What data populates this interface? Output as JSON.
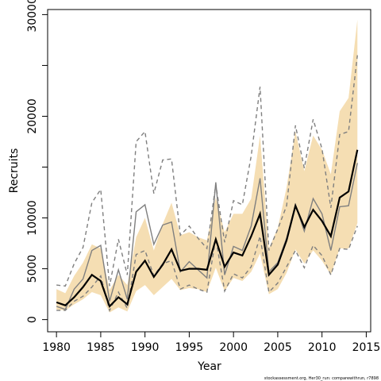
{
  "chart_data": {
    "type": "line",
    "xlabel": "Year",
    "ylabel": "Recruits",
    "xlim": [
      1979,
      2015.5
    ],
    "ylim": [
      -1200,
      30500
    ],
    "x_ticks": [
      1980,
      1985,
      1990,
      1995,
      2000,
      2005,
      2010,
      2015
    ],
    "y_ticks": [
      0,
      5000,
      10000,
      20000,
      30000
    ],
    "y_minor_ticks": [
      15000,
      25000
    ],
    "grid": false,
    "footer": "stockassessment.org, Her30_run: comparewithrun, r7898",
    "colors": {
      "band": "#F5DEB3",
      "estimate": "#000000",
      "compare": "#7F7F7F"
    },
    "x": [
      1980,
      1981,
      1982,
      1983,
      1984,
      1985,
      1986,
      1987,
      1988,
      1989,
      1990,
      1991,
      1992,
      1993,
      1994,
      1995,
      1996,
      1997,
      1998,
      1999,
      2000,
      2001,
      2002,
      2003,
      2004,
      2005,
      2006,
      2007,
      2008,
      2009,
      2010,
      2011,
      2012,
      2013,
      2014
    ],
    "series": [
      {
        "style": "band",
        "lower": [
          1000,
          900,
          1500,
          2000,
          2700,
          2400,
          700,
          1200,
          800,
          2800,
          3400,
          2400,
          3200,
          4000,
          2900,
          3100,
          3000,
          2700,
          5100,
          2800,
          4100,
          3800,
          4700,
          6500,
          2500,
          3000,
          4600,
          6900,
          5500,
          6800,
          5800,
          4400,
          7000,
          7000,
          9500
        ],
        "upper": [
          3000,
          2600,
          4300,
          5600,
          7400,
          7000,
          2900,
          4400,
          3400,
          8100,
          10000,
          6800,
          9400,
          11500,
          8300,
          8600,
          8100,
          7800,
          12000,
          8600,
          10400,
          10400,
          11900,
          18100,
          7000,
          9000,
          13000,
          18500,
          14600,
          18100,
          16700,
          14300,
          20500,
          21800,
          29500
        ]
      },
      {
        "style": "solid-black",
        "values": [
          1700,
          1400,
          2200,
          3200,
          4400,
          3800,
          1300,
          2200,
          1500,
          4700,
          5800,
          4200,
          5400,
          6900,
          4800,
          5000,
          5000,
          4900,
          7900,
          5200,
          6600,
          6300,
          8200,
          10400,
          4400,
          5400,
          7800,
          11200,
          9100,
          10800,
          9700,
          8200,
          12000,
          12600,
          16700
        ]
      },
      {
        "style": "solid-gray",
        "values": [
          1300,
          1000,
          3000,
          4000,
          6800,
          7300,
          1800,
          4900,
          2000,
          10600,
          11300,
          7400,
          9300,
          9600,
          4700,
          5700,
          4900,
          4100,
          13500,
          4400,
          7200,
          6800,
          9200,
          13900,
          4700,
          5600,
          8000,
          11300,
          8700,
          11900,
          10400,
          6800,
          11100,
          11200,
          15400
        ]
      },
      {
        "style": "dashed-upper",
        "values": [
          3400,
          3300,
          5500,
          7100,
          11500,
          12800,
          3300,
          7900,
          4400,
          17500,
          18500,
          12400,
          15700,
          15800,
          8300,
          9200,
          8000,
          7000,
          13300,
          7600,
          11700,
          11300,
          16100,
          22900,
          6800,
          8900,
          11200,
          19100,
          14900,
          19700,
          16800,
          11000,
          18200,
          18500,
          26000
        ]
      },
      {
        "style": "dashed-lower",
        "values": [
          900,
          900,
          1800,
          2300,
          3200,
          4300,
          900,
          2700,
          1100,
          6400,
          6800,
          4300,
          5500,
          5800,
          3000,
          3400,
          3000,
          2700,
          8000,
          2800,
          4500,
          4100,
          5200,
          8200,
          2700,
          3600,
          5200,
          6800,
          5100,
          7300,
          6300,
          4400,
          7000,
          6900,
          9200
        ]
      }
    ]
  }
}
